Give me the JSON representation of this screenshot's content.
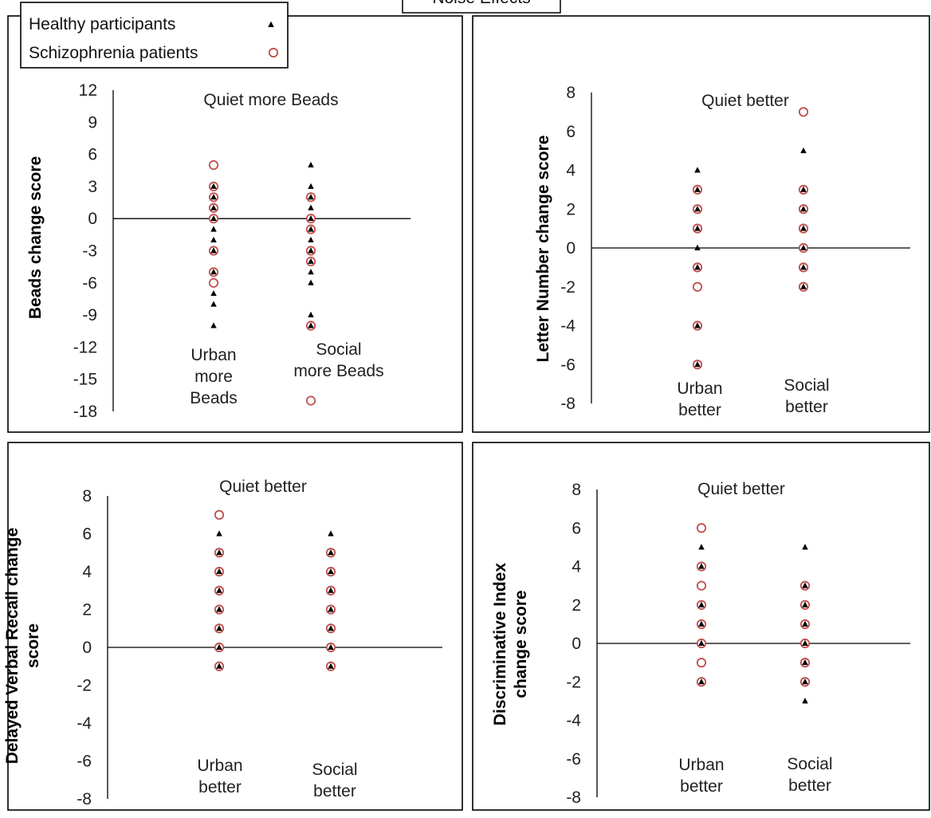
{
  "figure_title": "Noise Effects",
  "legend": {
    "placement": "top-left",
    "entries": [
      {
        "label": "Healthy participants",
        "marker": "filled-triangle",
        "color": "#000000"
      },
      {
        "label": "Schizophrenia patients",
        "marker": "open-circle",
        "color": "#c0504d"
      }
    ]
  },
  "chart_data": [
    {
      "type": "scatter",
      "title": "",
      "ylabel": "Beads change score",
      "xlabel": "",
      "ylim": [
        -18,
        12
      ],
      "yticks": [
        12,
        9,
        6,
        3,
        0,
        -3,
        -6,
        -9,
        -12,
        -15,
        -18
      ],
      "top_annotation": "Quiet more Beads",
      "categories": [
        {
          "label_lines": [
            "Urban",
            "more",
            "Beads"
          ]
        },
        {
          "label_lines": [
            "Social",
            "more Beads"
          ]
        }
      ],
      "series": [
        {
          "name": "Healthy participants",
          "marker": "triangle",
          "points": [
            [
              0,
              3
            ],
            [
              0,
              2
            ],
            [
              0,
              1
            ],
            [
              0,
              0
            ],
            [
              0,
              -1
            ],
            [
              0,
              -2
            ],
            [
              0,
              -3
            ],
            [
              0,
              -5
            ],
            [
              0,
              -7
            ],
            [
              0,
              -8
            ],
            [
              0,
              -10
            ],
            [
              1,
              5
            ],
            [
              1,
              3
            ],
            [
              1,
              2
            ],
            [
              1,
              1
            ],
            [
              1,
              0
            ],
            [
              1,
              -1
            ],
            [
              1,
              -2
            ],
            [
              1,
              -3
            ],
            [
              1,
              -4
            ],
            [
              1,
              -5
            ],
            [
              1,
              -6
            ],
            [
              1,
              -9
            ],
            [
              1,
              -10
            ]
          ]
        },
        {
          "name": "Schizophrenia patients",
          "marker": "circle",
          "points": [
            [
              0,
              5
            ],
            [
              0,
              3
            ],
            [
              0,
              2
            ],
            [
              0,
              1
            ],
            [
              0,
              0
            ],
            [
              0,
              -3
            ],
            [
              0,
              -5
            ],
            [
              0,
              -6
            ],
            [
              1,
              2
            ],
            [
              1,
              0
            ],
            [
              1,
              -1
            ],
            [
              1,
              -3
            ],
            [
              1,
              -4
            ],
            [
              1,
              -10
            ],
            [
              1,
              -17
            ]
          ]
        }
      ]
    },
    {
      "type": "scatter",
      "title": "",
      "ylabel": "Letter Number change score",
      "xlabel": "",
      "ylim": [
        -8,
        8
      ],
      "yticks": [
        8,
        6,
        4,
        2,
        0,
        -2,
        -4,
        -6,
        -8
      ],
      "top_annotation": "Quiet better",
      "categories": [
        {
          "label_lines": [
            "Urban",
            "better"
          ]
        },
        {
          "label_lines": [
            "Social",
            "better"
          ]
        }
      ],
      "series": [
        {
          "name": "Healthy participants",
          "marker": "triangle",
          "points": [
            [
              0,
              4
            ],
            [
              0,
              3
            ],
            [
              0,
              2
            ],
            [
              0,
              1
            ],
            [
              0,
              0
            ],
            [
              0,
              -1
            ],
            [
              0,
              -4
            ],
            [
              0,
              -6
            ],
            [
              1,
              5
            ],
            [
              1,
              3
            ],
            [
              1,
              2
            ],
            [
              1,
              1
            ],
            [
              1,
              0
            ],
            [
              1,
              -1
            ],
            [
              1,
              -2
            ]
          ]
        },
        {
          "name": "Schizophrenia patients",
          "marker": "circle",
          "points": [
            [
              0,
              3
            ],
            [
              0,
              2
            ],
            [
              0,
              1
            ],
            [
              0,
              -1
            ],
            [
              0,
              -2
            ],
            [
              0,
              -4
            ],
            [
              0,
              -6
            ],
            [
              1,
              7
            ],
            [
              1,
              3
            ],
            [
              1,
              2
            ],
            [
              1,
              1
            ],
            [
              1,
              0
            ],
            [
              1,
              -1
            ],
            [
              1,
              -2
            ]
          ]
        }
      ]
    },
    {
      "type": "scatter",
      "title": "",
      "ylabel": "Delayed Verbal Recall change score",
      "ylabel_lines": [
        "Delayed Verbal Recall change",
        "score"
      ],
      "xlabel": "",
      "ylim": [
        -8,
        8
      ],
      "yticks": [
        8,
        6,
        4,
        2,
        0,
        -2,
        -4,
        -6,
        -8
      ],
      "top_annotation": "Quiet better",
      "categories": [
        {
          "label_lines": [
            "Urban",
            "better"
          ]
        },
        {
          "label_lines": [
            "Social",
            "better"
          ]
        }
      ],
      "series": [
        {
          "name": "Healthy participants",
          "marker": "triangle",
          "points": [
            [
              0,
              6
            ],
            [
              0,
              5
            ],
            [
              0,
              4
            ],
            [
              0,
              3
            ],
            [
              0,
              2
            ],
            [
              0,
              1
            ],
            [
              0,
              0
            ],
            [
              0,
              -1
            ],
            [
              1,
              6
            ],
            [
              1,
              5
            ],
            [
              1,
              4
            ],
            [
              1,
              3
            ],
            [
              1,
              2
            ],
            [
              1,
              1
            ],
            [
              1,
              0
            ],
            [
              1,
              -1
            ]
          ]
        },
        {
          "name": "Schizophrenia patients",
          "marker": "circle",
          "points": [
            [
              0,
              7
            ],
            [
              0,
              5
            ],
            [
              0,
              4
            ],
            [
              0,
              3
            ],
            [
              0,
              2
            ],
            [
              0,
              1
            ],
            [
              0,
              0
            ],
            [
              0,
              -1
            ],
            [
              1,
              5
            ],
            [
              1,
              4
            ],
            [
              1,
              3
            ],
            [
              1,
              2
            ],
            [
              1,
              1
            ],
            [
              1,
              0
            ],
            [
              1,
              -1
            ]
          ]
        }
      ]
    },
    {
      "type": "scatter",
      "title": "",
      "ylabel": "Discriminative Index change score",
      "ylabel_lines": [
        "Discriminative Index",
        "change score"
      ],
      "xlabel": "",
      "ylim": [
        -8,
        8
      ],
      "yticks": [
        8,
        6,
        4,
        2,
        0,
        -2,
        -4,
        -6,
        -8
      ],
      "top_annotation": "Quiet better",
      "categories": [
        {
          "label_lines": [
            "Urban",
            "better"
          ]
        },
        {
          "label_lines": [
            "Social",
            "better"
          ]
        }
      ],
      "series": [
        {
          "name": "Healthy participants",
          "marker": "triangle",
          "points": [
            [
              0,
              5
            ],
            [
              0,
              4
            ],
            [
              0,
              2
            ],
            [
              0,
              1
            ],
            [
              0,
              0
            ],
            [
              0,
              -2
            ],
            [
              1,
              5
            ],
            [
              1,
              3
            ],
            [
              1,
              2
            ],
            [
              1,
              1
            ],
            [
              1,
              0
            ],
            [
              1,
              -1
            ],
            [
              1,
              -2
            ],
            [
              1,
              -3
            ]
          ]
        },
        {
          "name": "Schizophrenia patients",
          "marker": "circle",
          "points": [
            [
              0,
              6
            ],
            [
              0,
              4
            ],
            [
              0,
              3
            ],
            [
              0,
              2
            ],
            [
              0,
              1
            ],
            [
              0,
              0
            ],
            [
              0,
              -1
            ],
            [
              0,
              -2
            ],
            [
              1,
              3
            ],
            [
              1,
              2
            ],
            [
              1,
              1
            ],
            [
              1,
              0
            ],
            [
              1,
              -1
            ],
            [
              1,
              -2
            ]
          ]
        }
      ]
    }
  ]
}
